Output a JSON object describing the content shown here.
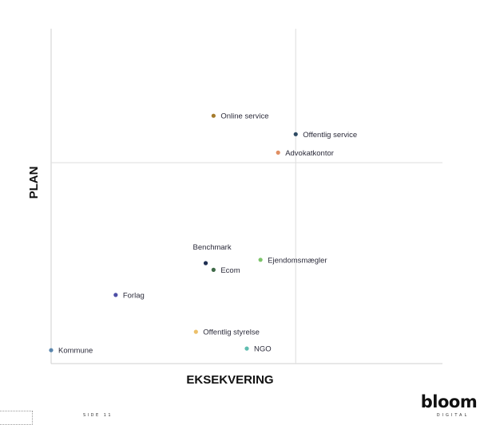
{
  "chart_data": {
    "type": "scatter",
    "xlabel": "EKSEKVERING",
    "ylabel": "PLAN",
    "xlim": [
      0,
      10
    ],
    "ylim": [
      0,
      10
    ],
    "quadrant_lines": {
      "x": 6.25,
      "y": 6
    },
    "grid": false,
    "points": [
      {
        "label": "Online service",
        "x": 4.15,
        "y": 7.4,
        "color": "#a57b2c"
      },
      {
        "label": "Offentlig service",
        "x": 6.25,
        "y": 6.85,
        "color": "#2d4a62"
      },
      {
        "label": "Advokatkontor",
        "x": 5.8,
        "y": 6.3,
        "color": "#e08f63"
      },
      {
        "label": "Benchmark",
        "x": 3.95,
        "y": 3.0,
        "color": "#1f2f52"
      },
      {
        "label": "Ecom",
        "x": 4.15,
        "y": 2.8,
        "color": "#3f6a48"
      },
      {
        "label": "Ejendomsmægler",
        "x": 5.35,
        "y": 3.1,
        "color": "#7cc46a"
      },
      {
        "label": "Forlag",
        "x": 1.65,
        "y": 2.05,
        "color": "#4d4ea6"
      },
      {
        "label": "Offentlig styrelse",
        "x": 3.7,
        "y": 0.95,
        "color": "#ecc06a"
      },
      {
        "label": "Kommune",
        "x": 0.0,
        "y": 0.4,
        "color": "#5b86ad"
      },
      {
        "label": "NGO",
        "x": 5.0,
        "y": 0.45,
        "color": "#5fbdb0"
      }
    ]
  },
  "footer": {
    "page_label": "SIDE 11"
  },
  "logo": {
    "name": "bloom",
    "subtitle": "DIGITAL"
  }
}
